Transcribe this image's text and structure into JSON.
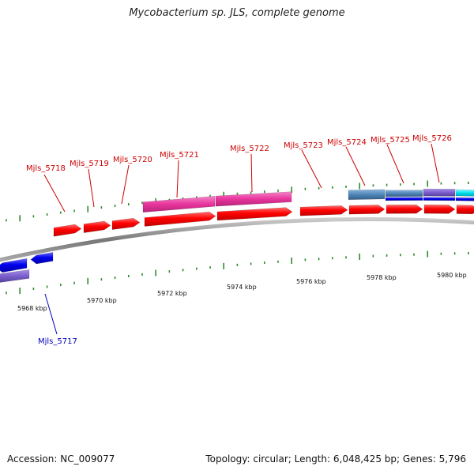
{
  "title": "Mycobacterium sp. JLS, complete genome",
  "footer": {
    "accession": "Accession: NC_009077",
    "summary": "Topology: circular; Length: 6,048,425 bp; Genes: 5,796"
  },
  "colors": {
    "background": "#ffffff",
    "forward_gene": "#ff0000",
    "reverse_gene": "#0000ee",
    "feature_pink": "#e8359c",
    "feature_steel": "#4f86b8",
    "feature_purple": "#7a5ccc",
    "feature_cyan": "#00e0f0",
    "backbone": "#888888",
    "tick": "#2e8b2e",
    "label_forward": "#cc0000",
    "label_reverse": "#0000bb"
  },
  "gene_labels": [
    {
      "id": "Mjls_5717",
      "strand": "reverse"
    },
    {
      "id": "Mjls_5718",
      "strand": "forward"
    },
    {
      "id": "Mjls_5719",
      "strand": "forward"
    },
    {
      "id": "Mjls_5720",
      "strand": "forward"
    },
    {
      "id": "Mjls_5721",
      "strand": "forward"
    },
    {
      "id": "Mjls_5722",
      "strand": "forward"
    },
    {
      "id": "Mjls_5723",
      "strand": "forward"
    },
    {
      "id": "Mjls_5724",
      "strand": "forward"
    },
    {
      "id": "Mjls_5725",
      "strand": "forward"
    },
    {
      "id": "Mjls_5726",
      "strand": "forward"
    }
  ],
  "scale_labels": [
    "5968 kbp",
    "5970 kbp",
    "5972 kbp",
    "5974 kbp",
    "5976 kbp",
    "5978 kbp",
    "5980 kbp"
  ]
}
